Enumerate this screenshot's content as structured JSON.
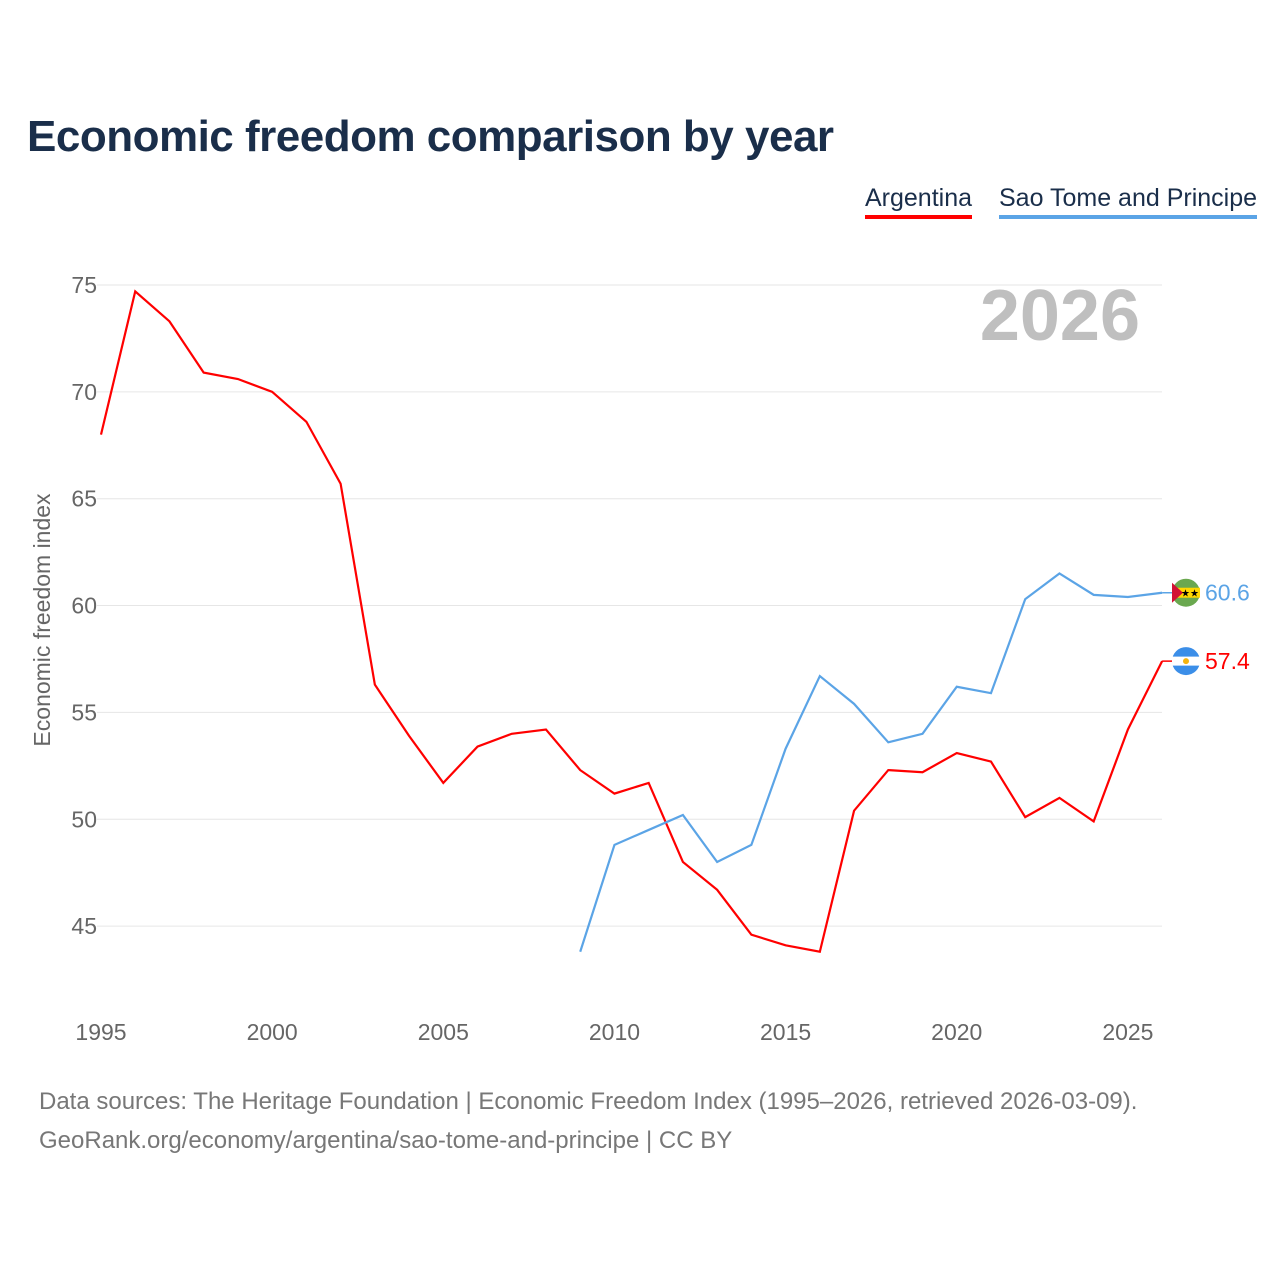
{
  "title": "Economic freedom comparison by year",
  "chart_data": {
    "type": "line",
    "title": "Economic freedom comparison by year",
    "ylabel": "Economic freedom index",
    "xlabel": "",
    "xlim": [
      1995,
      2026
    ],
    "ylim": [
      42,
      76.5
    ],
    "yticks": [
      45,
      50,
      55,
      60,
      65,
      70,
      75
    ],
    "xticks": [
      1995,
      2000,
      2005,
      2010,
      2015,
      2020,
      2025
    ],
    "grid": true,
    "legend_position": "top-right",
    "year_label": "2026",
    "series": [
      {
        "name": "Argentina",
        "color": "#ff0000",
        "end_label": "57.4",
        "x": [
          1995,
          1996,
          1997,
          1998,
          1999,
          2000,
          2001,
          2002,
          2003,
          2004,
          2005,
          2006,
          2007,
          2008,
          2009,
          2010,
          2011,
          2012,
          2013,
          2014,
          2015,
          2016,
          2017,
          2018,
          2019,
          2020,
          2021,
          2022,
          2023,
          2024,
          2025,
          2026
        ],
        "values": [
          68.0,
          74.7,
          73.3,
          70.9,
          70.6,
          70.0,
          68.6,
          65.7,
          56.3,
          53.9,
          51.7,
          53.4,
          54.0,
          54.2,
          52.3,
          51.2,
          51.7,
          48.0,
          46.7,
          44.6,
          44.1,
          43.8,
          50.4,
          52.3,
          52.2,
          53.1,
          52.7,
          50.1,
          51.0,
          49.9,
          54.2,
          57.4
        ]
      },
      {
        "name": "Sao Tome and Principe",
        "color": "#5ba4e6",
        "end_label": "60.6",
        "x": [
          2009,
          2010,
          2011,
          2012,
          2013,
          2014,
          2015,
          2016,
          2017,
          2018,
          2019,
          2020,
          2021,
          2022,
          2023,
          2024,
          2025,
          2026
        ],
        "values": [
          43.8,
          48.8,
          49.5,
          50.2,
          48.0,
          48.8,
          53.3,
          56.7,
          55.4,
          53.6,
          54.0,
          56.2,
          55.9,
          60.3,
          61.5,
          60.5,
          60.4,
          60.6
        ]
      }
    ]
  },
  "footer": {
    "line1": "Data sources: The Heritage Foundation | Economic Freedom Index (1995–2026, retrieved 2026-03-09).",
    "line2": "GeoRank.org/economy/argentina/sao-tome-and-principe | CC BY"
  }
}
